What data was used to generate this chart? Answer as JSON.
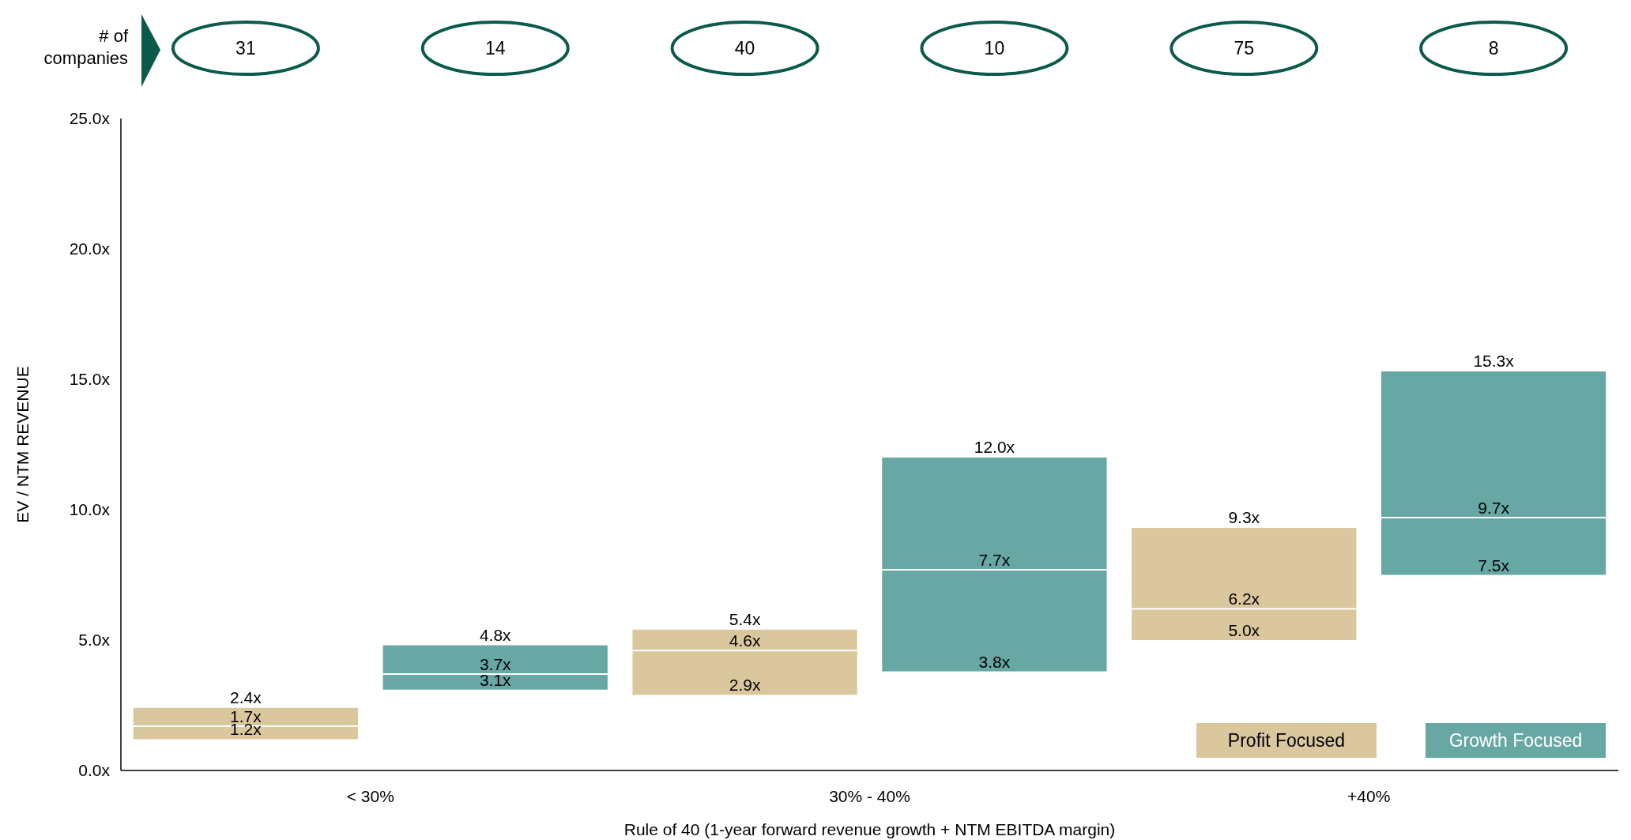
{
  "chart_data": {
    "type": "box",
    "xlabel": "Rule of 40 (1-year forward revenue growth + NTM EBITDA margin)",
    "ylabel": "EV / NTM REVENUE",
    "categories": [
      "< 30%",
      "30% - 40%",
      "+40%"
    ],
    "series": [
      {
        "name": "Profit Focused",
        "color": "#dbc79e",
        "boxes": [
          {
            "low": 1.2,
            "q1": 1.2,
            "median": 1.7,
            "q3": 2.4,
            "high": 2.4
          },
          {
            "low": 2.9,
            "q1": 2.9,
            "median": 4.6,
            "q3": 5.4,
            "high": 5.4
          },
          {
            "low": 5.0,
            "q1": 5.0,
            "median": 6.2,
            "q3": 9.3,
            "high": 9.3
          }
        ],
        "value_labels": [
          [
            "1.2x",
            "1.7x",
            "2.4x"
          ],
          [
            "2.9x",
            "4.6x",
            "5.4x"
          ],
          [
            "5.0x",
            "6.2x",
            "9.3x"
          ]
        ]
      },
      {
        "name": "Growth Focused",
        "color": "#67a7a4",
        "boxes": [
          {
            "low": 3.1,
            "q1": 3.1,
            "median": 3.7,
            "q3": 4.8,
            "high": 4.8
          },
          {
            "low": 3.8,
            "q1": 3.8,
            "median": 7.7,
            "q3": 12.0,
            "high": 12.0
          },
          {
            "low": 7.5,
            "q1": 7.5,
            "median": 9.7,
            "q3": 15.3,
            "high": 15.3
          }
        ],
        "value_labels": [
          [
            "3.1x",
            "3.7x",
            "4.8x"
          ],
          [
            "3.8x",
            "7.7x",
            "12.0x"
          ],
          [
            "7.5x",
            "9.7x",
            "15.3x"
          ]
        ]
      }
    ],
    "ylim": [
      0,
      25
    ],
    "yticks": [
      {
        "value": 0,
        "label": "0.0x"
      },
      {
        "value": 5,
        "label": "5.0x"
      },
      {
        "value": 10,
        "label": "10.0x"
      },
      {
        "value": 15,
        "label": "15.0x"
      },
      {
        "value": 20,
        "label": "20.0x"
      },
      {
        "value": 25,
        "label": "25.0x"
      }
    ],
    "legend": "bottom right",
    "annotations": [
      "# of companies",
      "31",
      "14",
      "40",
      "10",
      "75",
      "8"
    ]
  }
}
